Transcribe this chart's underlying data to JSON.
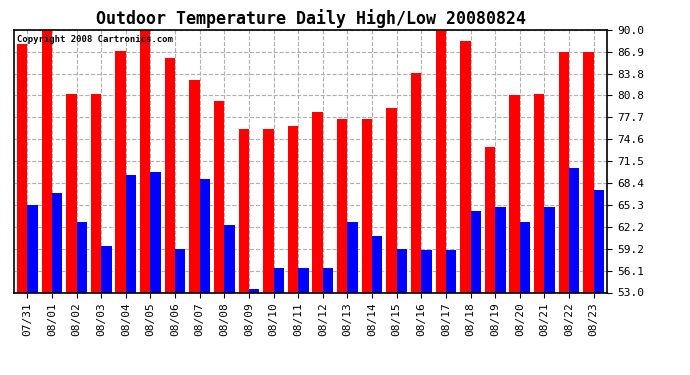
{
  "title": "Outdoor Temperature Daily High/Low 20080824",
  "copyright": "Copyright 2008 Cartronics.com",
  "categories": [
    "07/31",
    "08/01",
    "08/02",
    "08/03",
    "08/04",
    "08/05",
    "08/06",
    "08/07",
    "08/08",
    "08/09",
    "08/10",
    "08/11",
    "08/12",
    "08/13",
    "08/14",
    "08/15",
    "08/16",
    "08/17",
    "08/18",
    "08/19",
    "08/20",
    "08/21",
    "08/22",
    "08/23"
  ],
  "highs": [
    88.0,
    90.0,
    81.0,
    81.0,
    87.0,
    90.5,
    86.0,
    83.0,
    80.0,
    76.0,
    76.0,
    76.5,
    78.5,
    77.5,
    77.5,
    79.0,
    84.0,
    90.0,
    88.5,
    73.5,
    80.8,
    81.0,
    86.9,
    86.9
  ],
  "lows": [
    65.3,
    67.0,
    63.0,
    59.5,
    69.5,
    70.0,
    59.2,
    69.0,
    62.5,
    53.5,
    56.5,
    56.5,
    56.5,
    63.0,
    61.0,
    59.2,
    59.0,
    59.0,
    64.5,
    65.0,
    63.0,
    65.0,
    70.5,
    67.5
  ],
  "high_color": "#ff0000",
  "low_color": "#0000ff",
  "bg_color": "#ffffff",
  "grid_color": "#b0b0b0",
  "ylim_min": 53.0,
  "ylim_max": 90.0,
  "yticks": [
    53.0,
    56.1,
    59.2,
    62.2,
    65.3,
    68.4,
    71.5,
    74.6,
    77.7,
    80.8,
    83.8,
    86.9,
    90.0
  ],
  "title_fontsize": 12,
  "tick_fontsize": 8,
  "bar_width": 0.42
}
